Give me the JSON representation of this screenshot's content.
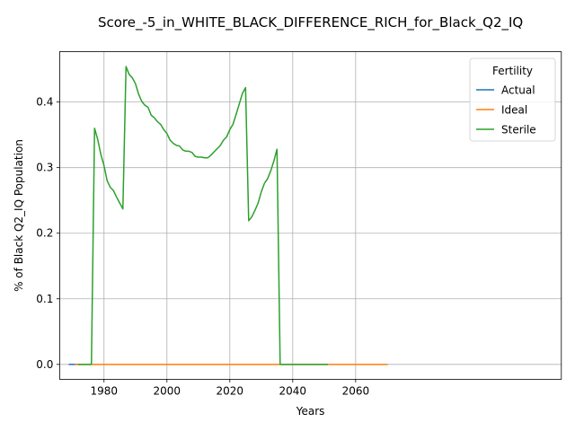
{
  "chart_data": {
    "type": "line",
    "title": "Score_-5_in_WHITE_BLACK_DIFFERENCE_RICH_for_Black_Q2_IQ",
    "xlabel": "Years",
    "ylabel": "% of Black Q2_IQ Population",
    "xlim": [
      1965.9,
      2125.4
    ],
    "ylim": [
      -0.0227,
      0.4767
    ],
    "xticks": [
      1980,
      2000,
      2020,
      2040,
      2060
    ],
    "xtick_labels": [
      "1980",
      "2000",
      "2020",
      "2040",
      "2060"
    ],
    "yticks": [
      0.0,
      0.1,
      0.2,
      0.3,
      0.4
    ],
    "ytick_labels": [
      "0.0",
      "0.1",
      "0.2",
      "0.3",
      "0.4"
    ],
    "grid": true,
    "legend": {
      "title": "Fertility",
      "placement": "top-right"
    },
    "series": [
      {
        "name": "Actual",
        "color": "#1f77b4",
        "x": [
          1969,
          1972
        ],
        "y": [
          0.0,
          0.0
        ]
      },
      {
        "name": "Ideal",
        "color": "#ff7f0e",
        "x": [
          1971,
          2070
        ],
        "y": [
          0.0,
          0.0
        ]
      },
      {
        "name": "Sterile",
        "color": "#2ca02c",
        "x": [
          1972,
          1976,
          1977,
          1978,
          1979,
          1980,
          1981,
          1982,
          1983,
          1984,
          1985,
          1986,
          1987,
          1988,
          1989,
          1990,
          1991,
          1992,
          1993,
          1994,
          1995,
          1996,
          1997,
          1998,
          1999,
          2000,
          2001,
          2002,
          2003,
          2004,
          2005,
          2006,
          2007,
          2008,
          2009,
          2010,
          2011,
          2012,
          2013,
          2014,
          2015,
          2016,
          2017,
          2018,
          2019,
          2020,
          2021,
          2022,
          2023,
          2024,
          2025,
          2026,
          2027,
          2028,
          2029,
          2030,
          2031,
          2032,
          2033,
          2034,
          2035,
          2036,
          2040,
          2051
        ],
        "y": [
          0.0,
          0.0,
          0.36,
          0.343,
          0.32,
          0.303,
          0.28,
          0.27,
          0.265,
          0.255,
          0.246,
          0.237,
          0.454,
          0.442,
          0.437,
          0.428,
          0.412,
          0.401,
          0.395,
          0.392,
          0.38,
          0.376,
          0.37,
          0.366,
          0.358,
          0.352,
          0.342,
          0.337,
          0.334,
          0.333,
          0.327,
          0.325,
          0.325,
          0.323,
          0.317,
          0.316,
          0.316,
          0.315,
          0.315,
          0.319,
          0.324,
          0.329,
          0.334,
          0.342,
          0.347,
          0.358,
          0.366,
          0.381,
          0.397,
          0.413,
          0.422,
          0.219,
          0.225,
          0.235,
          0.246,
          0.263,
          0.276,
          0.283,
          0.295,
          0.31,
          0.328,
          0.0,
          0.0,
          0.0
        ]
      }
    ]
  }
}
